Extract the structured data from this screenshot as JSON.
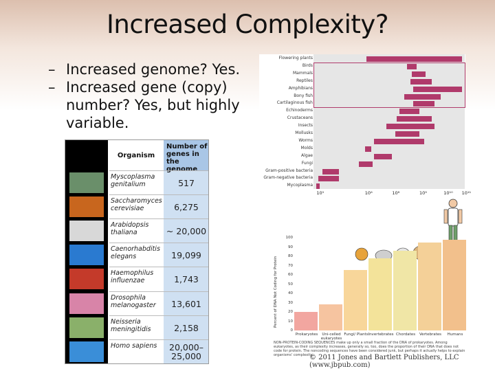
{
  "slide": {
    "title": "Increased Complexity?",
    "bullets": [
      {
        "dash": "–",
        "text": "Increased genome? Yes."
      },
      {
        "dash": "–",
        "text": "Increased gene (copy) number? Yes, but highly variable."
      }
    ]
  },
  "gene_table": {
    "header_organism": "Organism",
    "header_genes": "Number of genes in the genome",
    "rows": [
      {
        "organism": "Myscoplasma genitalium",
        "genes": "517",
        "thumb_color": "#6a8f6a"
      },
      {
        "organism": "Saccharomyces cerevisiae",
        "genes": "6,275",
        "thumb_color": "#c8661e"
      },
      {
        "organism": "Arabidopsis thaliana",
        "genes": "~ 20,000",
        "thumb_color": "#d8d8d8"
      },
      {
        "organism": "Caenorhabditis elegans",
        "genes": "19,099",
        "thumb_color": "#2a7ad0"
      },
      {
        "organism": "Haemophilus influenzae",
        "genes": "1,743",
        "thumb_color": "#c43a2a"
      },
      {
        "organism": "Drosophila melanogaster",
        "genes": "13,601",
        "thumb_color": "#d884a8"
      },
      {
        "organism": "Neisseria meningitidis",
        "genes": "2,158",
        "thumb_color": "#8ab06a"
      },
      {
        "organism": "Homo sapiens",
        "genes": "20,000–25,000",
        "thumb_color": "#3a8ed8"
      }
    ]
  },
  "chart_data": [
    {
      "type": "bar",
      "orientation": "horizontal-range",
      "x_scale": "log",
      "xlim": [
        100000,
        1000000000000
      ],
      "tick_labels": [
        "10⁵",
        "10⁶",
        "10⁸",
        "10⁹",
        "10¹⁰",
        "10¹¹"
      ],
      "categories": [
        "Flowering plants",
        "Birds",
        "Mammals",
        "Reptiles",
        "Amphibians",
        "Bony fish",
        "Cartilaginous fish",
        "Echinoderms",
        "Crustaceans",
        "Insects",
        "Mollusks",
        "Worms",
        "Molds",
        "Algae",
        "Fungi",
        "Gram-positive bacteria",
        "Gram-negative bacteria",
        "Mycoplasma"
      ],
      "ranges": [
        [
          0.35,
          0.98
        ],
        [
          0.62,
          0.68
        ],
        [
          0.65,
          0.74
        ],
        [
          0.64,
          0.78
        ],
        [
          0.66,
          0.98
        ],
        [
          0.6,
          0.84
        ],
        [
          0.66,
          0.8
        ],
        [
          0.57,
          0.7
        ],
        [
          0.55,
          0.78
        ],
        [
          0.48,
          0.8
        ],
        [
          0.54,
          0.7
        ],
        [
          0.4,
          0.73
        ],
        [
          0.34,
          0.38
        ],
        [
          0.4,
          0.52
        ],
        [
          0.3,
          0.39
        ],
        [
          0.06,
          0.17
        ],
        [
          0.03,
          0.17
        ],
        [
          0.02,
          0.04
        ]
      ],
      "bar_color": "#b03a6b"
    },
    {
      "type": "bar",
      "ylabel": "Percent of DNA Not Coding for Protein",
      "ylim": [
        0,
        100
      ],
      "yticks": [
        "100",
        "90",
        "80",
        "70",
        "60",
        "50",
        "40",
        "30",
        "20",
        "10",
        "0"
      ],
      "categories": [
        "Prokaryotes",
        "Uni-celled eukaryotes",
        "Fungi/ Plants",
        "Invertebrates",
        "Chordates",
        "Vertebrates",
        "Humans"
      ],
      "values": [
        20,
        28,
        65,
        78,
        86,
        95,
        98
      ],
      "colors": [
        "#f2a6a0",
        "#f6c4a0",
        "#f8d69a",
        "#f3e39a",
        "#f0e6a6",
        "#f4d098",
        "#f2c08c"
      ],
      "caption": "NON-PROTEIN-CODING SEQUENCES make up only a small fraction of the DNA of prokaryotes. Among eukaryotes, as their complexity increases, generally so, too, does the proportion of their DNA that does not code for protein. The noncoding sequences have been considered junk, but perhaps it actually helps to explain organisms' complexity."
    }
  ],
  "footer": {
    "copyright": "© 2011 Jones and Bartlett Publishers, LLC (www.jbpub.com)"
  }
}
